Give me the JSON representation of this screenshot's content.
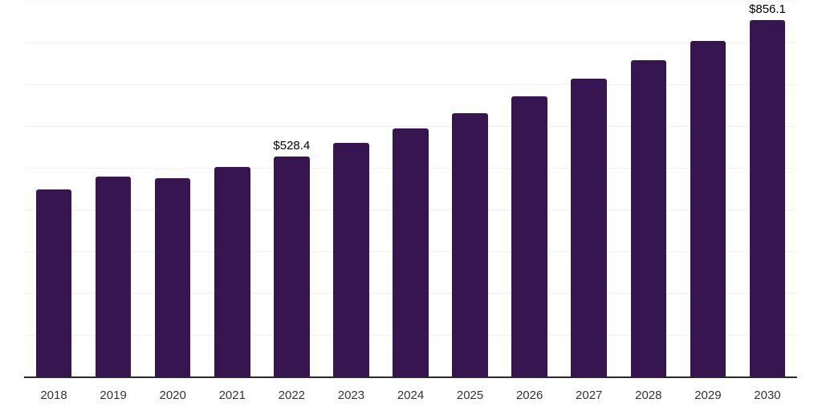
{
  "chart_data": {
    "type": "bar",
    "title": "",
    "xlabel": "",
    "ylabel": "",
    "categories": [
      "2018",
      "2019",
      "2020",
      "2021",
      "2022",
      "2023",
      "2024",
      "2025",
      "2026",
      "2027",
      "2028",
      "2029",
      "2030"
    ],
    "values": [
      450.0,
      480.0,
      476.5,
      503.0,
      528.4,
      561.3,
      596.2,
      633.4,
      672.7,
      714.6,
      759.0,
      806.2,
      856.1
    ],
    "data_labels": [
      "",
      "",
      "",
      "",
      "$528.4",
      "",
      "",
      "",
      "",
      "",
      "",
      "",
      "$856.1"
    ],
    "labeled_points": [
      {
        "category": "2022",
        "label": "$528.4"
      },
      {
        "category": "2030",
        "label": "$856.1"
      }
    ],
    "ylim": [
      0,
      900
    ],
    "gridline_step": 100,
    "grid": "horizontal",
    "y_tick_labels_visible": false,
    "legend_position": "none",
    "colors": {
      "bar": "#361551",
      "gridline": "#f2f0f2",
      "axis": "#2b2b2b",
      "tick_label": "#333333",
      "data_label": "#000000",
      "background": "#ffffff"
    }
  }
}
